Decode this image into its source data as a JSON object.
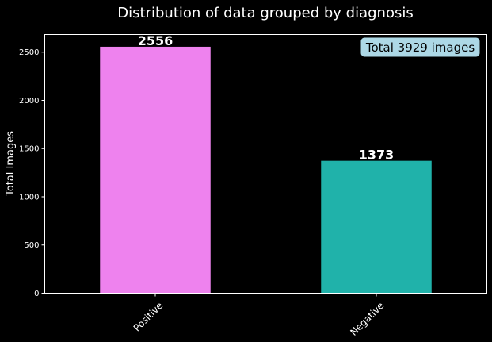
{
  "chart_data": {
    "type": "bar",
    "title": "Distribution of data grouped by diagnosis",
    "xlabel": "",
    "ylabel": "Total Images",
    "categories": [
      "Positive",
      "Negative"
    ],
    "values": [
      2556,
      1373
    ],
    "value_labels": [
      "2556",
      "1373"
    ],
    "ylim": [
      0,
      2683
    ],
    "yticks": [
      0,
      500,
      1000,
      1500,
      2000,
      2500
    ],
    "ytick_labels": [
      "0",
      "500",
      "1000",
      "1500",
      "2000",
      "2500"
    ],
    "bar_colors": [
      "#ee82ee",
      "#20b2aa"
    ],
    "grid": false,
    "background": "#000000",
    "axis_color": "#ffffff",
    "annotation": {
      "text": "Total 3929 images",
      "placement": "top-right",
      "box_color": "#add8e6"
    }
  }
}
